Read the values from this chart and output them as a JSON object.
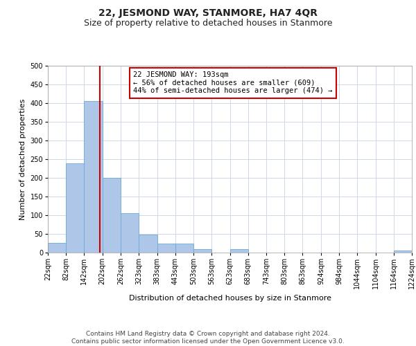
{
  "title": "22, JESMOND WAY, STANMORE, HA7 4QR",
  "subtitle": "Size of property relative to detached houses in Stanmore",
  "xlabel": "Distribution of detached houses by size in Stanmore",
  "ylabel": "Number of detached properties",
  "bar_color": "#aec6e8",
  "bar_edge_color": "#6aaad4",
  "background_color": "#ffffff",
  "grid_color": "#d0d8e8",
  "property_line_x": 193,
  "property_line_color": "#cc0000",
  "annotation_text": "22 JESMOND WAY: 193sqm\n← 56% of detached houses are smaller (609)\n44% of semi-detached houses are larger (474) →",
  "annotation_box_color": "#ffffff",
  "annotation_box_edge_color": "#cc0000",
  "bin_edges": [
    22,
    82,
    142,
    202,
    262,
    323,
    383,
    443,
    503,
    563,
    623,
    683,
    743,
    803,
    863,
    924,
    984,
    1044,
    1104,
    1164,
    1224
  ],
  "bin_labels": [
    "22sqm",
    "82sqm",
    "142sqm",
    "202sqm",
    "262sqm",
    "323sqm",
    "383sqm",
    "443sqm",
    "503sqm",
    "563sqm",
    "623sqm",
    "683sqm",
    "743sqm",
    "803sqm",
    "863sqm",
    "924sqm",
    "984sqm",
    "1044sqm",
    "1104sqm",
    "1164sqm",
    "1224sqm"
  ],
  "counts": [
    26,
    239,
    405,
    200,
    105,
    48,
    25,
    25,
    10,
    0,
    10,
    0,
    0,
    0,
    0,
    0,
    0,
    0,
    0,
    5
  ],
  "ylim": [
    0,
    500
  ],
  "yticks": [
    0,
    50,
    100,
    150,
    200,
    250,
    300,
    350,
    400,
    450,
    500
  ],
  "footer_text": "Contains HM Land Registry data © Crown copyright and database right 2024.\nContains public sector information licensed under the Open Government Licence v3.0.",
  "title_fontsize": 10,
  "subtitle_fontsize": 9,
  "axis_label_fontsize": 8,
  "tick_fontsize": 7,
  "annotation_fontsize": 7.5,
  "footer_fontsize": 6.5
}
